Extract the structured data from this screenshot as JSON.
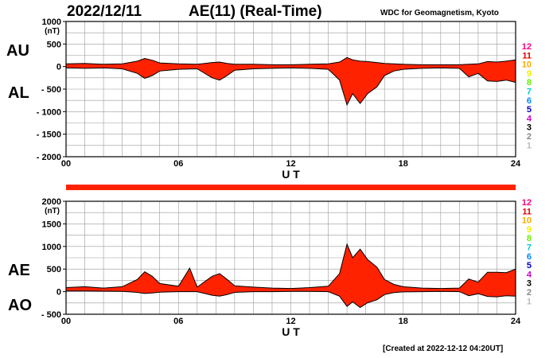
{
  "header": {
    "date": "2022/12/11",
    "title": "AE(11) (Real-Time)",
    "organization": "WDC for Geomagnetism, Kyoto",
    "created": "[Created at 2022-12-12 04:20UT]"
  },
  "colors": {
    "fill": "#ff2200",
    "envelope": "#000000",
    "grid": "#9a9a9a"
  },
  "station_scale": {
    "labels": [
      "12",
      "11",
      "10",
      "9",
      "8",
      "7",
      "6",
      "5",
      "4",
      "3",
      "2",
      "1"
    ],
    "colors": [
      "#ff0080",
      "#dd0000",
      "#ffaa00",
      "#eeee00",
      "#66ee00",
      "#00cccc",
      "#0088ff",
      "#0000cc",
      "#cc00cc",
      "#000000",
      "#888888",
      "#bbbbbb"
    ]
  },
  "chart_data": [
    {
      "type": "area",
      "panel": "AU / AL",
      "unit": "(nT)",
      "xlabel": "U T",
      "x_ticks": [
        "00",
        "06",
        "12",
        "18",
        "24"
      ],
      "xlim": [
        0,
        24
      ],
      "y_ticks": [
        "1000",
        "500",
        "0",
        "- 500",
        "- 1000",
        "- 1500",
        "- 2000"
      ],
      "ylim": [
        -2000,
        1000
      ],
      "grid": true,
      "series": [
        {
          "name": "AU",
          "x": [
            0,
            1,
            2,
            3,
            3.8,
            4.2,
            4.6,
            5,
            6,
            7,
            7.8,
            8.2,
            8.6,
            9,
            10,
            11,
            12,
            13,
            14,
            14.6,
            15,
            15.3,
            15.7,
            16.1,
            16.6,
            17,
            17.5,
            18,
            19,
            20,
            21,
            21.5,
            22,
            22.5,
            23,
            23.5,
            24
          ],
          "values": [
            60,
            70,
            50,
            60,
            120,
            180,
            140,
            80,
            60,
            50,
            90,
            100,
            70,
            50,
            50,
            40,
            40,
            50,
            60,
            100,
            200,
            150,
            120,
            110,
            90,
            70,
            60,
            50,
            40,
            40,
            40,
            50,
            60,
            110,
            100,
            120,
            150
          ]
        },
        {
          "name": "AL",
          "x": [
            0,
            1,
            2,
            3,
            3.8,
            4.2,
            4.6,
            5,
            6,
            7,
            7.8,
            8.2,
            8.6,
            9,
            10,
            11,
            12,
            13,
            14,
            14.6,
            15,
            15.3,
            15.7,
            16.1,
            16.6,
            17,
            17.5,
            18,
            19,
            20,
            21,
            21.5,
            22,
            22.5,
            23,
            23.5,
            24
          ],
          "values": [
            -30,
            -40,
            -30,
            -50,
            -150,
            -260,
            -200,
            -100,
            -60,
            -50,
            -250,
            -300,
            -200,
            -80,
            -50,
            -40,
            -30,
            -40,
            -60,
            -300,
            -850,
            -600,
            -820,
            -600,
            -450,
            -200,
            -100,
            -60,
            -40,
            -30,
            -40,
            -230,
            -150,
            -320,
            -330,
            -300,
            -350
          ]
        }
      ]
    },
    {
      "type": "area",
      "panel": "AE / AO",
      "unit": "(nT)",
      "xlabel": "U T",
      "x_ticks": [
        "00",
        "06",
        "12",
        "18",
        "24"
      ],
      "xlim": [
        0,
        24
      ],
      "y_ticks": [
        "2000",
        "1500",
        "1000",
        "500",
        "0",
        "- 500"
      ],
      "ylim": [
        -500,
        2000
      ],
      "grid": true,
      "series": [
        {
          "name": "AE",
          "x": [
            0,
            1,
            2,
            3,
            3.8,
            4.2,
            4.6,
            5,
            6,
            6.6,
            7,
            7.8,
            8.2,
            8.6,
            9,
            10,
            11,
            12,
            13,
            14,
            14.6,
            15,
            15.3,
            15.7,
            16.1,
            16.6,
            17,
            17.5,
            18,
            19,
            20,
            21,
            21.5,
            22,
            22.5,
            23,
            23.5,
            24
          ],
          "values": [
            90,
            110,
            80,
            110,
            270,
            440,
            340,
            180,
            120,
            520,
            100,
            340,
            400,
            270,
            130,
            100,
            80,
            70,
            90,
            120,
            400,
            1050,
            750,
            940,
            710,
            540,
            270,
            160,
            110,
            80,
            70,
            80,
            280,
            210,
            430,
            430,
            420,
            500
          ]
        },
        {
          "name": "AO",
          "x": [
            0,
            1,
            2,
            3,
            3.8,
            4.2,
            4.6,
            5,
            6,
            7,
            7.8,
            8.2,
            8.6,
            9,
            10,
            11,
            12,
            13,
            14,
            14.6,
            15,
            15.3,
            15.7,
            16.1,
            16.6,
            17,
            17.5,
            18,
            19,
            20,
            21,
            21.5,
            22,
            22.5,
            23,
            23.5,
            24
          ],
          "values": [
            15,
            15,
            10,
            5,
            -15,
            -40,
            -30,
            -10,
            0,
            0,
            -80,
            -100,
            -65,
            -15,
            0,
            0,
            5,
            5,
            0,
            -100,
            -325,
            -225,
            -350,
            -245,
            -180,
            -65,
            -20,
            -5,
            0,
            5,
            0,
            -90,
            -45,
            -105,
            -115,
            -90,
            -100
          ]
        }
      ]
    }
  ],
  "panel_labels": {
    "top_upper": "AU",
    "top_lower": "AL",
    "bottom_upper": "AE",
    "bottom_lower": "AO"
  }
}
